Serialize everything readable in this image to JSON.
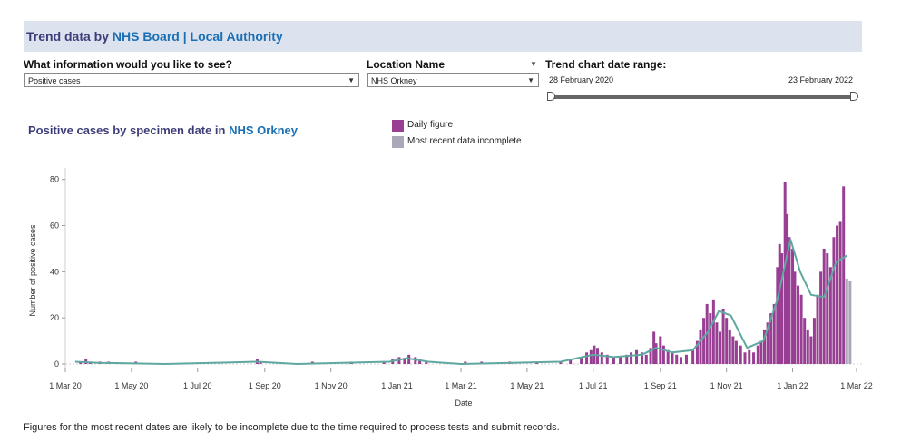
{
  "header": {
    "title_prefix": "Trend data by",
    "link_board": "NHS Board",
    "separator": "|",
    "link_authority": "Local Authority"
  },
  "controls": {
    "info_label": "What information would you like to see?",
    "info_value": "Positive cases",
    "location_label": "Location Name",
    "location_value": "NHS Orkney",
    "range_label": "Trend chart date range:",
    "range_start": "28 February 2020",
    "range_end": "23 February 2022"
  },
  "colors": {
    "daily": "#983f93",
    "incomplete": "#a8a8b8",
    "trend": "#5fa8a0",
    "title": "#3d3d7a",
    "link": "#1a6fb5"
  },
  "chart_data": {
    "type": "bar",
    "title_prefix": "Positive cases by specimen date in",
    "title_location": "NHS Orkney",
    "xlabel": "Date",
    "ylabel": "Number of positive cases",
    "ylim": [
      0,
      85
    ],
    "yticks": [
      0,
      20,
      40,
      60,
      80
    ],
    "xlim": [
      "2020-03-01",
      "2022-03-06"
    ],
    "xticks": [
      {
        "date": "2020-03-01",
        "label": "1 Mar 20"
      },
      {
        "date": "2020-05-01",
        "label": "1 May 20"
      },
      {
        "date": "2020-07-01",
        "label": "1 Jul 20"
      },
      {
        "date": "2020-09-01",
        "label": "1 Sep 20"
      },
      {
        "date": "2020-11-01",
        "label": "1 Nov 20"
      },
      {
        "date": "2021-01-01",
        "label": "1 Jan 21"
      },
      {
        "date": "2021-03-01",
        "label": "1 Mar 21"
      },
      {
        "date": "2021-05-01",
        "label": "1 May 21"
      },
      {
        "date": "2021-07-01",
        "label": "1 Jul 21"
      },
      {
        "date": "2021-09-01",
        "label": "1 Sep 21"
      },
      {
        "date": "2021-11-01",
        "label": "1 Nov 21"
      },
      {
        "date": "2022-01-01",
        "label": "1 Jan 22"
      },
      {
        "date": "2022-03-01",
        "label": "1 Mar 22"
      }
    ],
    "legend": [
      {
        "label": "Daily figure"
      },
      {
        "label": "Most recent data incomplete"
      }
    ],
    "grid": false,
    "series": [
      {
        "kind": "daily",
        "points": [
          [
            "2020-03-15",
            1
          ],
          [
            "2020-03-20",
            2
          ],
          [
            "2020-03-24",
            1
          ],
          [
            "2020-04-02",
            1
          ],
          [
            "2020-04-10",
            1
          ],
          [
            "2020-05-05",
            1
          ],
          [
            "2020-08-25",
            2
          ],
          [
            "2020-08-28",
            1
          ],
          [
            "2020-10-15",
            1
          ],
          [
            "2020-11-20",
            1
          ],
          [
            "2020-12-20",
            1
          ],
          [
            "2020-12-28",
            2
          ],
          [
            "2021-01-03",
            3
          ],
          [
            "2021-01-08",
            2
          ],
          [
            "2021-01-12",
            4
          ],
          [
            "2021-01-18",
            3
          ],
          [
            "2021-01-22",
            2
          ],
          [
            "2021-01-28",
            1
          ],
          [
            "2021-03-05",
            1
          ],
          [
            "2021-03-20",
            1
          ],
          [
            "2021-04-15",
            1
          ],
          [
            "2021-05-10",
            1
          ],
          [
            "2021-06-01",
            1
          ],
          [
            "2021-06-10",
            2
          ],
          [
            "2021-06-20",
            3
          ],
          [
            "2021-06-25",
            5
          ],
          [
            "2021-06-29",
            6
          ],
          [
            "2021-07-02",
            8
          ],
          [
            "2021-07-05",
            7
          ],
          [
            "2021-07-09",
            5
          ],
          [
            "2021-07-14",
            4
          ],
          [
            "2021-07-20",
            3
          ],
          [
            "2021-07-26",
            3
          ],
          [
            "2021-08-01",
            4
          ],
          [
            "2021-08-05",
            5
          ],
          [
            "2021-08-10",
            6
          ],
          [
            "2021-08-15",
            5
          ],
          [
            "2021-08-19",
            4
          ],
          [
            "2021-08-23",
            7
          ],
          [
            "2021-08-26",
            14
          ],
          [
            "2021-08-28",
            9
          ],
          [
            "2021-09-01",
            12
          ],
          [
            "2021-09-04",
            8
          ],
          [
            "2021-09-08",
            6
          ],
          [
            "2021-09-12",
            5
          ],
          [
            "2021-09-16",
            4
          ],
          [
            "2021-09-20",
            3
          ],
          [
            "2021-09-25",
            4
          ],
          [
            "2021-10-01",
            6
          ],
          [
            "2021-10-05",
            10
          ],
          [
            "2021-10-08",
            15
          ],
          [
            "2021-10-11",
            20
          ],
          [
            "2021-10-14",
            26
          ],
          [
            "2021-10-17",
            22
          ],
          [
            "2021-10-20",
            28
          ],
          [
            "2021-10-23",
            18
          ],
          [
            "2021-10-26",
            14
          ],
          [
            "2021-10-29",
            24
          ],
          [
            "2021-11-01",
            20
          ],
          [
            "2021-11-04",
            15
          ],
          [
            "2021-11-07",
            12
          ],
          [
            "2021-11-10",
            10
          ],
          [
            "2021-11-14",
            8
          ],
          [
            "2021-11-18",
            5
          ],
          [
            "2021-11-22",
            6
          ],
          [
            "2021-11-26",
            5
          ],
          [
            "2021-11-30",
            8
          ],
          [
            "2021-12-03",
            10
          ],
          [
            "2021-12-06",
            15
          ],
          [
            "2021-12-09",
            18
          ],
          [
            "2021-12-12",
            22
          ],
          [
            "2021-12-15",
            26
          ],
          [
            "2021-12-18",
            42
          ],
          [
            "2021-12-20",
            52
          ],
          [
            "2021-12-22",
            48
          ],
          [
            "2021-12-25",
            79
          ],
          [
            "2021-12-27",
            65
          ],
          [
            "2021-12-29",
            55
          ],
          [
            "2022-01-01",
            50
          ],
          [
            "2022-01-03",
            40
          ],
          [
            "2022-01-06",
            34
          ],
          [
            "2022-01-09",
            30
          ],
          [
            "2022-01-12",
            20
          ],
          [
            "2022-01-15",
            15
          ],
          [
            "2022-01-18",
            12
          ],
          [
            "2022-01-21",
            20
          ],
          [
            "2022-01-24",
            30
          ],
          [
            "2022-01-27",
            40
          ],
          [
            "2022-01-30",
            50
          ],
          [
            "2022-02-02",
            48
          ],
          [
            "2022-02-05",
            42
          ],
          [
            "2022-02-08",
            55
          ],
          [
            "2022-02-11",
            60
          ],
          [
            "2022-02-14",
            62
          ],
          [
            "2022-02-17",
            77
          ]
        ]
      },
      {
        "kind": "incomplete",
        "points": [
          [
            "2022-02-20",
            37
          ],
          [
            "2022-02-23",
            36
          ]
        ]
      },
      {
        "kind": "trend",
        "points": [
          [
            "2020-03-10",
            1
          ],
          [
            "2020-04-01",
            0.5
          ],
          [
            "2020-06-01",
            0
          ],
          [
            "2020-08-25",
            1
          ],
          [
            "2020-10-01",
            0
          ],
          [
            "2020-12-25",
            1
          ],
          [
            "2021-01-10",
            2.5
          ],
          [
            "2021-01-30",
            1
          ],
          [
            "2021-03-01",
            0
          ],
          [
            "2021-06-01",
            1
          ],
          [
            "2021-07-01",
            4
          ],
          [
            "2021-07-20",
            3
          ],
          [
            "2021-08-15",
            4
          ],
          [
            "2021-08-28",
            7
          ],
          [
            "2021-09-12",
            5
          ],
          [
            "2021-10-01",
            6
          ],
          [
            "2021-10-15",
            14
          ],
          [
            "2021-10-25",
            23
          ],
          [
            "2021-11-05",
            21
          ],
          [
            "2021-11-20",
            7
          ],
          [
            "2021-12-05",
            10
          ],
          [
            "2021-12-18",
            28
          ],
          [
            "2021-12-30",
            54
          ],
          [
            "2022-01-08",
            40
          ],
          [
            "2022-01-18",
            30
          ],
          [
            "2022-01-30",
            29
          ],
          [
            "2022-02-10",
            44
          ],
          [
            "2022-02-20",
            47
          ]
        ]
      }
    ]
  },
  "footnote": "Figures for the most recent dates are likely to be incomplete due to the time required to process tests and submit records."
}
